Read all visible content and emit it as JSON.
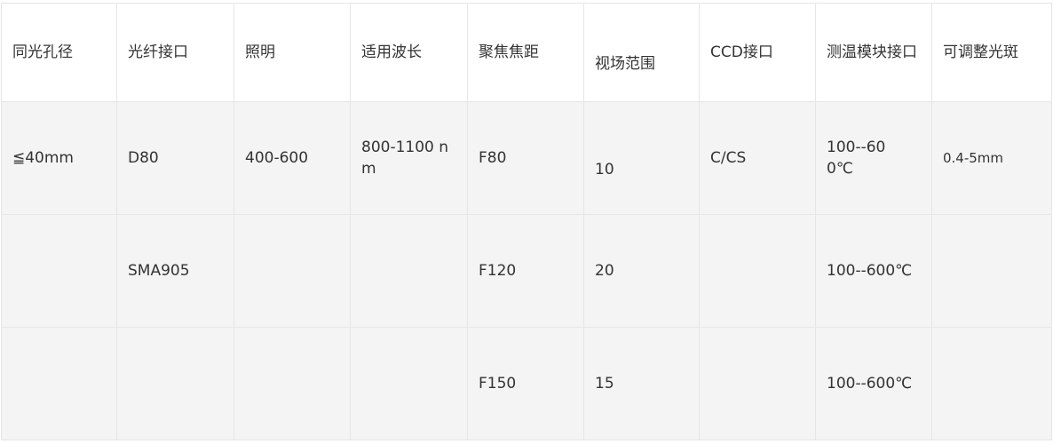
{
  "table": {
    "headers": [
      "同光孔径",
      "光纤接口",
      "照明",
      "适用波长",
      "聚焦焦距",
      "视场范围",
      "CCD接口",
      "测温模块接口",
      "可调整光斑"
    ],
    "rows": [
      [
        "≦40mm",
        "D80",
        "400-600",
        "800-1100 nm",
        "F80",
        "10",
        "C/CS",
        "100--600℃",
        "0.4-5mm"
      ],
      [
        "",
        "SMA905",
        "",
        "",
        "F120",
        "20",
        "",
        "100--600℃",
        ""
      ],
      [
        "",
        "",
        "",
        "",
        "F150",
        "15",
        "",
        "100--600℃",
        ""
      ]
    ]
  },
  "colors": {
    "row_background": "#f4f4f4",
    "header_background": "#ffffff",
    "border": "#e6e6e6",
    "text": "#333333"
  }
}
